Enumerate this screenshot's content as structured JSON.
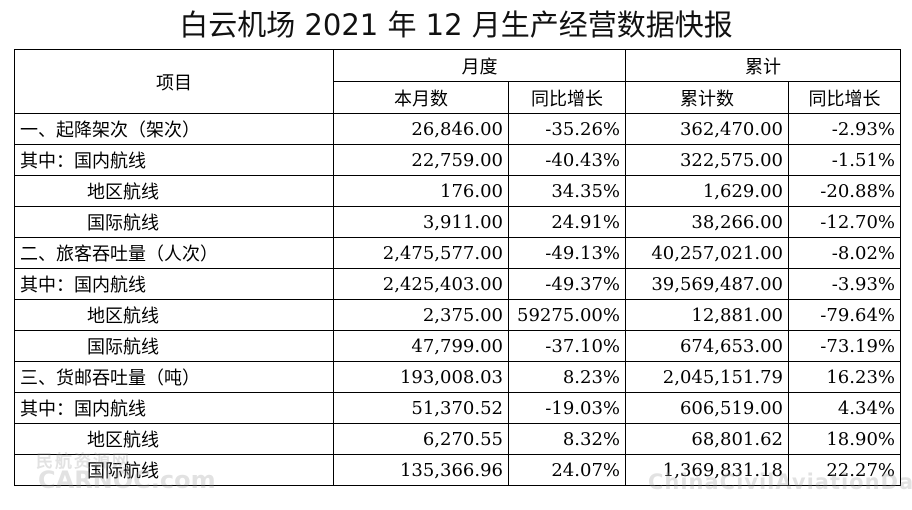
{
  "title": "白云机场 2021 年 12 月生产经营数据快报",
  "header": {
    "item": "项目",
    "monthly": "月度",
    "cumulative": "累计",
    "monthly_value": "本月数",
    "monthly_yoy": "同比增长",
    "cumulative_value": "累计数",
    "cumulative_yoy": "同比增长"
  },
  "rows": [
    {
      "name": "一、起降架次（架次）",
      "monthly": "26,846.00",
      "monthly_yoy": "-35.26%",
      "cumulative": "362,470.00",
      "cumulative_yoy": "-2.93%"
    },
    {
      "name": "其中：国内航线",
      "monthly": "22,759.00",
      "monthly_yoy": "-40.43%",
      "cumulative": "322,575.00",
      "cumulative_yoy": "-1.51%"
    },
    {
      "name": "地区航线",
      "monthly": "176.00",
      "monthly_yoy": "34.35%",
      "cumulative": "1,629.00",
      "cumulative_yoy": "-20.88%"
    },
    {
      "name": "国际航线",
      "monthly": "3,911.00",
      "monthly_yoy": "24.91%",
      "cumulative": "38,266.00",
      "cumulative_yoy": "-12.70%"
    },
    {
      "name": "二、旅客吞吐量（人次）",
      "monthly": "2,475,577.00",
      "monthly_yoy": "-49.13%",
      "cumulative": "40,257,021.00",
      "cumulative_yoy": "-8.02%"
    },
    {
      "name": "其中：国内航线",
      "monthly": "2,425,403.00",
      "monthly_yoy": "-49.37%",
      "cumulative": "39,569,487.00",
      "cumulative_yoy": "-3.93%"
    },
    {
      "name": "地区航线",
      "monthly": "2,375.00",
      "monthly_yoy": "59275.00%",
      "cumulative": "12,881.00",
      "cumulative_yoy": "-79.64%"
    },
    {
      "name": "国际航线",
      "monthly": "47,799.00",
      "monthly_yoy": "-37.10%",
      "cumulative": "674,653.00",
      "cumulative_yoy": "-73.19%"
    },
    {
      "name": "三、货邮吞吐量（吨）",
      "monthly": "193,008.03",
      "monthly_yoy": "8.23%",
      "cumulative": "2,045,151.79",
      "cumulative_yoy": "16.23%"
    },
    {
      "name": "其中：国内航线",
      "monthly": "51,370.52",
      "monthly_yoy": "-19.03%",
      "cumulative": "606,519.00",
      "cumulative_yoy": "4.34%"
    },
    {
      "name": "地区航线",
      "monthly": "6,270.55",
      "monthly_yoy": "8.32%",
      "cumulative": "68,801.62",
      "cumulative_yoy": "18.90%"
    },
    {
      "name": "国际航线",
      "monthly": "135,366.96",
      "monthly_yoy": "24.07%",
      "cumulative": "1,369,831.18",
      "cumulative_yoy": "22.27%"
    }
  ],
  "watermarks": {
    "left_cn": "民航资源网",
    "left_en": "CARNOC.com",
    "right": "ChinaCivilAviationDaily.com"
  }
}
